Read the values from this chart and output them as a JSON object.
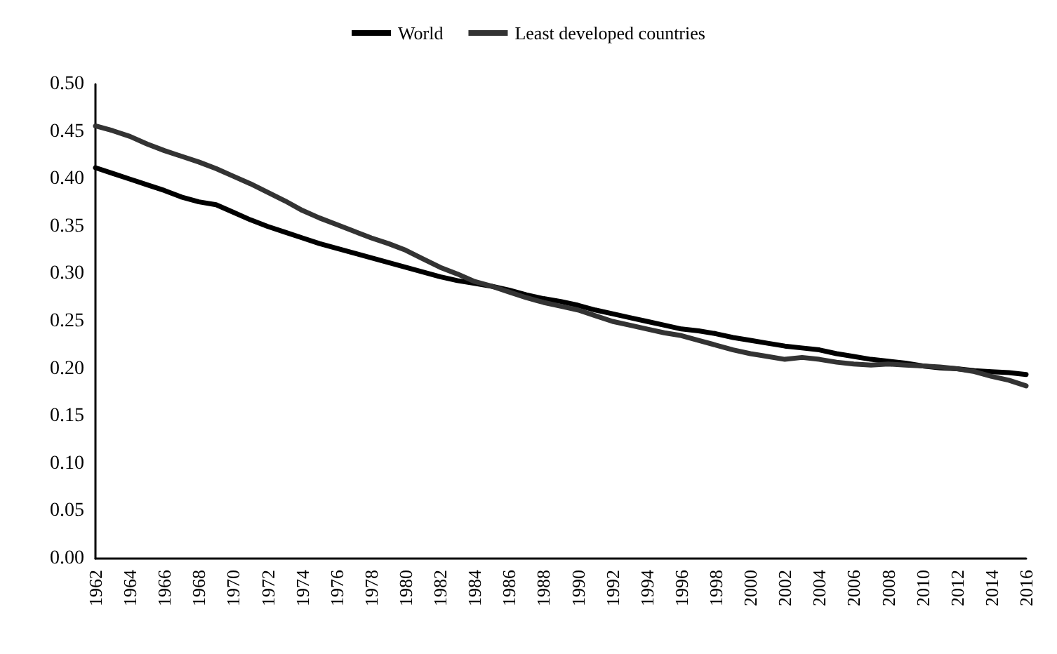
{
  "chart_data": {
    "type": "line",
    "categories": [
      "1962",
      null,
      "1964",
      null,
      "1966",
      null,
      "1968",
      null,
      "1970",
      null,
      "1972",
      null,
      "1974",
      null,
      "1976",
      null,
      "1978",
      null,
      "1980",
      null,
      "1982",
      null,
      "1984",
      null,
      "1986",
      null,
      "1988",
      null,
      "1990",
      null,
      "1992",
      null,
      "1994",
      null,
      "1996",
      null,
      "1998",
      null,
      "2000",
      null,
      "2002",
      null,
      "2004",
      null,
      "2006",
      null,
      "2008",
      null,
      "2010",
      null,
      "2012",
      null,
      "2014",
      null,
      "2016"
    ],
    "series": [
      {
        "name": "World",
        "color": "#000000",
        "values": [
          0.412,
          0.406,
          0.4,
          0.394,
          0.388,
          0.381,
          0.376,
          0.373,
          0.365,
          0.357,
          0.35,
          0.344,
          0.338,
          0.332,
          0.327,
          0.322,
          0.317,
          0.312,
          0.307,
          0.302,
          0.297,
          0.293,
          0.29,
          0.287,
          0.283,
          0.278,
          0.274,
          0.271,
          0.267,
          0.262,
          0.258,
          0.254,
          0.25,
          0.246,
          0.242,
          0.24,
          0.237,
          0.233,
          0.23,
          0.227,
          0.224,
          0.222,
          0.22,
          0.216,
          0.213,
          0.21,
          0.208,
          0.206,
          0.203,
          0.201,
          0.2,
          0.198,
          0.197,
          0.196,
          0.194
        ]
      },
      {
        "name": "Least developed countries",
        "color": "#333333",
        "values": [
          0.456,
          0.451,
          0.445,
          0.437,
          0.43,
          0.424,
          0.418,
          0.411,
          0.403,
          0.395,
          0.386,
          0.377,
          0.367,
          0.359,
          0.352,
          0.345,
          0.338,
          0.332,
          0.325,
          0.316,
          0.307,
          0.3,
          0.292,
          0.287,
          0.281,
          0.275,
          0.27,
          0.266,
          0.262,
          0.256,
          0.25,
          0.246,
          0.242,
          0.238,
          0.235,
          0.23,
          0.225,
          0.22,
          0.216,
          0.213,
          0.21,
          0.212,
          0.21,
          0.207,
          0.205,
          0.204,
          0.205,
          0.204,
          0.203,
          0.202,
          0.2,
          0.197,
          0.192,
          0.188,
          0.182
        ]
      }
    ],
    "ylim": [
      0,
      0.5
    ],
    "yticks": [
      {
        "value": 0,
        "label": "0.00"
      },
      {
        "value": 0.05,
        "label": "0.05"
      },
      {
        "value": 0.1,
        "label": "0.10"
      },
      {
        "value": 0.15,
        "label": "0.15"
      },
      {
        "value": 0.2,
        "label": "0.20"
      },
      {
        "value": 0.25,
        "label": "0.25"
      },
      {
        "value": 0.3,
        "label": "0.30"
      },
      {
        "value": 0.35,
        "label": "0.35"
      },
      {
        "value": 0.4,
        "label": "0.40"
      },
      {
        "value": 0.45,
        "label": "0.45"
      },
      {
        "value": 0.5,
        "label": "0.50"
      }
    ],
    "grid": false,
    "legend": "top",
    "marker": "none",
    "line_style": "solid"
  }
}
